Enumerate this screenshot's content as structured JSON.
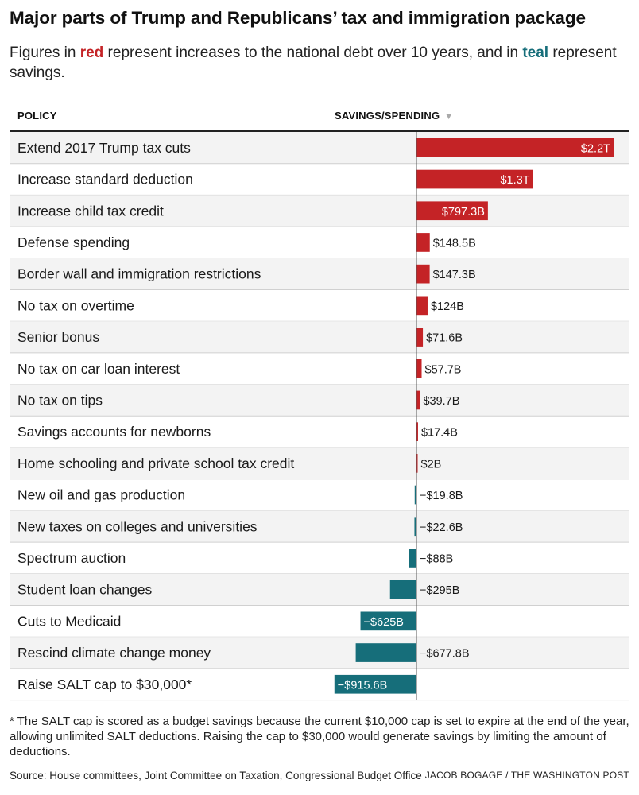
{
  "title": "Major parts of Trump and Republicans’ tax and immigration package",
  "subtitle": {
    "pre": "Figures in ",
    "red_word": "red",
    "mid": " represent increases to the national debt over 10 years, and in ",
    "teal_word": "teal",
    "post": " represent savings."
  },
  "colors": {
    "increase": "#c42326",
    "savings": "#166e7a",
    "row_alt": "#f3f3f3",
    "gridline": "#d0d0d0"
  },
  "table": {
    "header_policy": "POLICY",
    "header_amount": "SAVINGS/SPENDING",
    "sort_icon": "sort-down-icon"
  },
  "chart_data": {
    "type": "bar",
    "orientation": "horizontal",
    "unit": "billions of dollars",
    "categories": [
      "Extend 2017 Trump tax cuts",
      "Increase standard deduction",
      "Increase child tax credit",
      "Defense spending",
      "Border wall and immigration restrictions",
      "No tax on overtime",
      "Senior bonus",
      "No tax on car loan interest",
      "No tax on tips",
      "Savings accounts for newborns",
      "Home schooling and private school tax credit",
      "New oil and gas production",
      "New taxes on colleges and universities",
      "Spectrum auction",
      "Student loan changes",
      "Cuts to Medicaid",
      "Rescind climate change money",
      "Raise SALT cap to $30,000*"
    ],
    "values": [
      2200,
      1300,
      797.3,
      148.5,
      147.3,
      124,
      71.6,
      57.7,
      39.7,
      17.4,
      2,
      -19.8,
      -22.6,
      -88,
      -295,
      -625,
      -677.8,
      -915.6
    ],
    "labels": [
      "$2.2T",
      "$1.3T",
      "$797.3B",
      "$148.5B",
      "$147.3B",
      "$124B",
      "$71.6B",
      "$57.7B",
      "$39.7B",
      "$17.4B",
      "$2B",
      "−$19.8B",
      "−$22.6B",
      "−$88B",
      "−$295B",
      "−$625B",
      "−$677.8B",
      "−$915.6B"
    ],
    "label_inside": [
      true,
      true,
      true,
      false,
      false,
      false,
      false,
      false,
      false,
      false,
      false,
      false,
      false,
      false,
      false,
      true,
      false,
      true
    ],
    "xlim": [
      -960,
      2300
    ]
  },
  "footnote": "* The SALT cap is scored as a budget savings because the current $10,000 cap is set to expire at the end of the year, allowing unlimited SALT deductions. Raising the cap to $30,000 would generate savings by limiting the amount of deductions.",
  "source": "Source: House committees, Joint Committee on Taxation, Congressional Budget Office",
  "credit": "JACOB BOGAGE / THE WASHINGTON POST"
}
